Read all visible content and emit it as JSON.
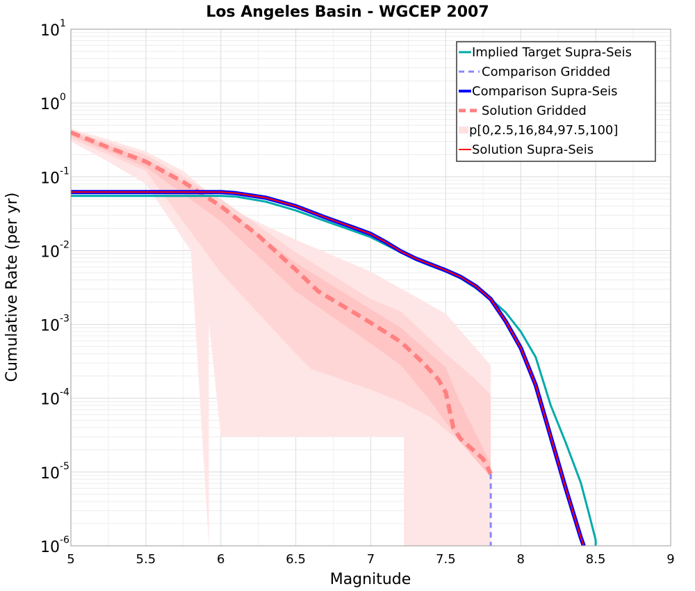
{
  "chart_data": {
    "type": "line",
    "title": "Los Angeles Basin - WGCEP 2007",
    "xlabel": "Magnitude",
    "ylabel": "Cumulative Rate (per yr)",
    "xlim": [
      5,
      9
    ],
    "ylim": [
      1e-06,
      10
    ],
    "yscale": "log",
    "grid": true,
    "legend_position": "top-right",
    "xticks": [
      "5",
      "5.5",
      "6",
      "6.5",
      "7",
      "7.5",
      "8",
      "8.5",
      "9"
    ],
    "yticks": [
      {
        "value": 1e-06,
        "base": "10",
        "exp": "-6"
      },
      {
        "value": 1e-05,
        "base": "10",
        "exp": "-5"
      },
      {
        "value": 0.0001,
        "base": "10",
        "exp": "-4"
      },
      {
        "value": 0.001,
        "base": "10",
        "exp": "-3"
      },
      {
        "value": 0.01,
        "base": "10",
        "exp": "-2"
      },
      {
        "value": 0.1,
        "base": "10",
        "exp": "-1"
      },
      {
        "value": 1,
        "base": "10",
        "exp": "0"
      },
      {
        "value": 10,
        "base": "10",
        "exp": "1"
      }
    ],
    "bands": [
      {
        "name": "p[0,100]",
        "color": "#ffe6e6",
        "x": [
          5.0,
          5.25,
          5.5,
          5.75,
          5.85,
          5.92,
          6.0,
          6.5,
          7.0,
          7.5,
          7.8,
          7.8,
          7.5,
          7.22,
          7.22,
          6.6,
          6.0,
          5.92,
          5.92,
          5.8,
          5.5,
          5.25,
          5.0
        ],
        "y": [
          0.45,
          0.32,
          0.22,
          0.12,
          0.08,
          0.06,
          0.042,
          0.014,
          0.0052,
          0.0014,
          0.00028,
          1e-06,
          1e-06,
          1e-06,
          3e-05,
          3e-05,
          3e-05,
          0.0011,
          1e-06,
          0.01,
          0.08,
          0.16,
          0.3
        ]
      },
      {
        "name": "p[2.5,97.5]",
        "color": "#ffd6d6",
        "x": [
          5.0,
          5.5,
          6.0,
          6.5,
          7.0,
          7.2,
          7.5,
          7.7,
          7.8,
          7.8,
          7.6,
          7.4,
          7.2,
          7.0,
          6.6,
          6.5,
          6.0,
          5.5,
          5.0
        ],
        "y": [
          0.42,
          0.2,
          0.05,
          0.0095,
          0.0022,
          0.0015,
          0.0004,
          0.00018,
          0.00011,
          1.1e-05,
          2.5e-05,
          5.5e-05,
          9e-05,
          0.00013,
          0.00025,
          0.0004,
          0.005,
          0.12,
          0.33
        ]
      },
      {
        "name": "p[16,84]",
        "color": "#ffc4c4",
        "x": [
          5.0,
          5.5,
          6.0,
          6.5,
          7.0,
          7.2,
          7.5,
          7.6,
          7.8,
          7.8,
          7.6,
          7.4,
          7.2,
          7.0,
          6.5,
          6.0,
          5.5,
          5.0
        ],
        "y": [
          0.4,
          0.175,
          0.042,
          0.0068,
          0.0016,
          0.0009,
          0.00026,
          8.5e-05,
          1.3e-05,
          8.5e-06,
          2.5e-05,
          9e-05,
          0.00028,
          0.00055,
          0.0028,
          0.025,
          0.135,
          0.36
        ]
      }
    ],
    "series": [
      {
        "name": "Implied Target Supra-Seis",
        "color": "#00aaaa",
        "style": "solid",
        "width": 3,
        "x": [
          5.0,
          5.5,
          5.8,
          6.0,
          6.1,
          6.3,
          6.5,
          6.7,
          6.9,
          7.0,
          7.1,
          7.2,
          7.3,
          7.4,
          7.5,
          7.6,
          7.7,
          7.8,
          7.9,
          8.0,
          8.1,
          8.2,
          8.3,
          8.4,
          8.45,
          8.5,
          8.5
        ],
        "y": [
          0.055,
          0.055,
          0.055,
          0.055,
          0.054,
          0.046,
          0.035,
          0.025,
          0.018,
          0.0152,
          0.012,
          0.0095,
          0.0075,
          0.0062,
          0.0052,
          0.0042,
          0.0031,
          0.0022,
          0.00145,
          0.0008,
          0.00036,
          8e-05,
          2.5e-05,
          7.2e-06,
          3e-06,
          1.2e-06,
          1e-06
        ]
      },
      {
        "name": "Comparison Gridded",
        "color": "#8888ff",
        "style": "dashed",
        "width": 3,
        "x": [
          7.8,
          7.8
        ],
        "y": [
          9.5e-06,
          1e-06
        ]
      },
      {
        "name": "Comparison Supra-Seis",
        "color": "#0000ff",
        "style": "solid",
        "width": 6,
        "x": [
          5.0,
          5.5,
          5.8,
          6.0,
          6.1,
          6.3,
          6.5,
          6.7,
          6.9,
          7.0,
          7.1,
          7.2,
          7.3,
          7.4,
          7.5,
          7.6,
          7.7,
          7.8,
          7.9,
          8.0,
          8.1,
          8.2,
          8.3,
          8.4,
          8.42
        ],
        "y": [
          0.062,
          0.062,
          0.062,
          0.062,
          0.06,
          0.052,
          0.04,
          0.028,
          0.02,
          0.0168,
          0.013,
          0.0098,
          0.0078,
          0.0065,
          0.0054,
          0.0044,
          0.0033,
          0.0022,
          0.0011,
          0.00048,
          0.00015,
          3e-05,
          6e-06,
          1.3e-06,
          1e-06
        ]
      },
      {
        "name": "Solution Gridded",
        "color": "#ff8080",
        "style": "dashed",
        "width": 6,
        "x": [
          5.0,
          5.25,
          5.5,
          5.75,
          6.0,
          6.25,
          6.5,
          6.65,
          6.9,
          7.0,
          7.2,
          7.35,
          7.45,
          7.5,
          7.55,
          7.6,
          7.75,
          7.8
        ],
        "y": [
          0.4,
          0.25,
          0.16,
          0.085,
          0.04,
          0.016,
          0.0055,
          0.0028,
          0.0014,
          0.00105,
          0.00058,
          0.0003,
          0.00018,
          0.00012,
          4e-05,
          2.8e-05,
          1.5e-05,
          9.5e-06
        ]
      },
      {
        "name": "p[0,2.5,16,84,97.5,100]",
        "color": "#ffe0e0",
        "style": "band",
        "width": 10,
        "x": [],
        "y": []
      },
      {
        "name": "Solution Supra-Seis",
        "color": "#ff0000",
        "style": "solid",
        "width": 2,
        "x": [
          5.0,
          5.5,
          5.8,
          6.0,
          6.1,
          6.3,
          6.5,
          6.7,
          6.9,
          7.0,
          7.1,
          7.2,
          7.3,
          7.4,
          7.5,
          7.6,
          7.7,
          7.8,
          7.9,
          8.0,
          8.1,
          8.2,
          8.3,
          8.4,
          8.42
        ],
        "y": [
          0.062,
          0.062,
          0.062,
          0.062,
          0.06,
          0.052,
          0.04,
          0.028,
          0.02,
          0.0168,
          0.013,
          0.0098,
          0.0078,
          0.0065,
          0.0054,
          0.0044,
          0.0033,
          0.0022,
          0.0011,
          0.00048,
          0.00015,
          3e-05,
          6e-06,
          1.3e-06,
          1e-06
        ]
      }
    ]
  }
}
